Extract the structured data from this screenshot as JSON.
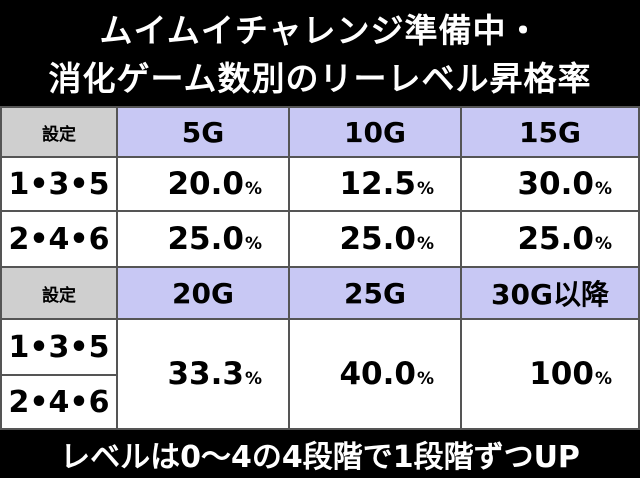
{
  "title_line1": "ムイムイチャレンジ準備中・",
  "title_line2": "消化ゲーム数別のリーレベル昇格率",
  "table1": {
    "header_label": "設定",
    "columns": [
      "5G",
      "10G",
      "15G"
    ],
    "rows": [
      {
        "label": "1•3•5",
        "values": [
          "20.0",
          "12.5",
          "30.0"
        ]
      },
      {
        "label": "2•4•6",
        "values": [
          "25.0",
          "25.0",
          "25.0"
        ]
      }
    ]
  },
  "table2": {
    "header_label": "設定",
    "columns": [
      "20G",
      "25G",
      "30G以降"
    ],
    "rows": [
      {
        "label": "1•3•5"
      },
      {
        "label": "2•4•6"
      }
    ],
    "values": [
      "33.3",
      "40.0",
      "100"
    ]
  },
  "unit": "%",
  "footer": "レベルは0〜4の4段階で1段階ずつUP"
}
